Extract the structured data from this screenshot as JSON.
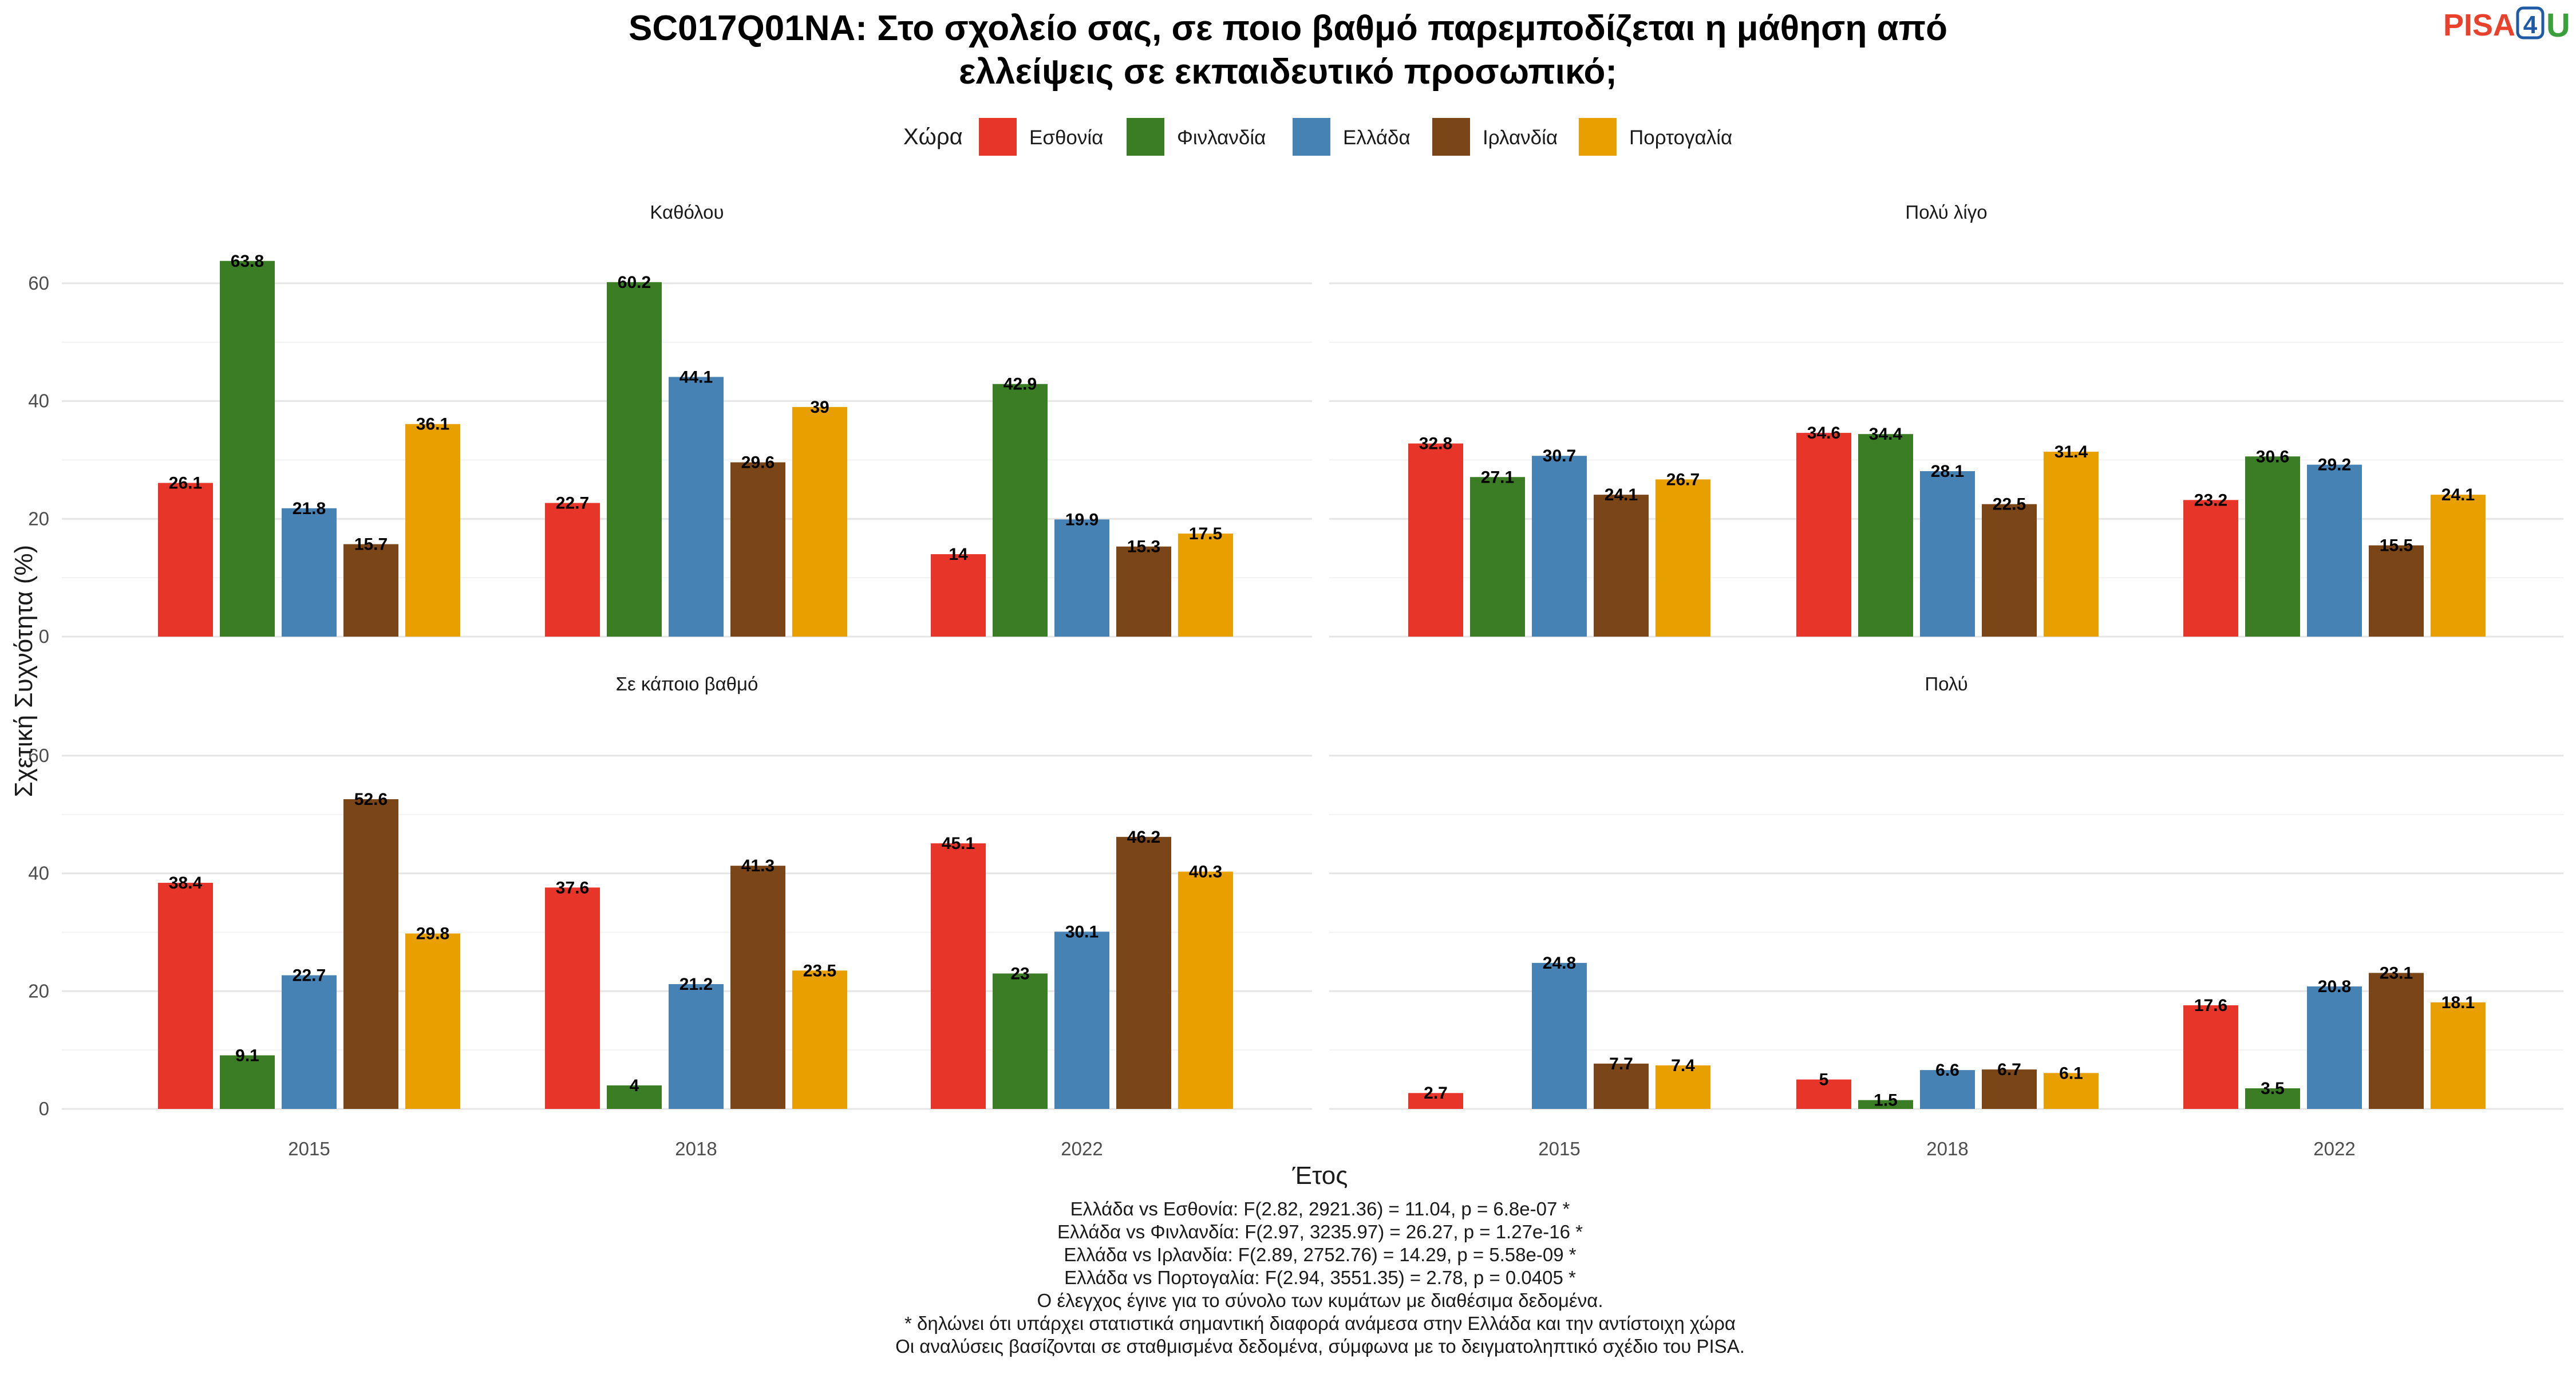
{
  "title_line1": "SC017Q01NA: Στο σχολείο σας, σε ποιο βαθμό παρεμποδίζεται η μάθηση από",
  "title_line2": "ελλείψεις σε εκπαιδευτικό προσωπικό;",
  "logo": {
    "text": "PISA4U",
    "pisa": "PISA",
    "four": "4",
    "u": "U"
  },
  "legend": {
    "title": "Χώρα",
    "placement": "top",
    "items": [
      {
        "label": "Εσθονία",
        "color": "#e8352a"
      },
      {
        "label": "Φινλανδία",
        "color": "#3a7d24"
      },
      {
        "label": "Ελλάδα",
        "color": "#4682b4"
      },
      {
        "label": "Ιρλανδία",
        "color": "#7a4517"
      },
      {
        "label": "Πορτογαλία",
        "color": "#e8a000"
      }
    ]
  },
  "axes": {
    "x_title": "Έτος",
    "y_title": "Σχετική Συχνότητα (%)",
    "y_ticks": [
      "0",
      "20",
      "40",
      "60"
    ],
    "ylim": [
      0,
      70
    ],
    "grid": true
  },
  "chart_data": {
    "type": "bar",
    "categories": [
      "2015",
      "2018",
      "2022"
    ],
    "series_names": [
      "Εσθονία",
      "Φινλανδία",
      "Ελλάδα",
      "Ιρλανδία",
      "Πορτογαλία"
    ],
    "colors": [
      "#e8352a",
      "#3a7d24",
      "#4682b4",
      "#7a4517",
      "#e8a000"
    ],
    "ylim": [
      0,
      70
    ],
    "panels": [
      {
        "title": "Καθόλου",
        "series": [
          {
            "name": "Εσθονία",
            "values": [
              26.1,
              22.7,
              14
            ]
          },
          {
            "name": "Φινλανδία",
            "values": [
              63.8,
              60.2,
              42.9
            ]
          },
          {
            "name": "Ελλάδα",
            "values": [
              21.8,
              44.1,
              19.9
            ]
          },
          {
            "name": "Ιρλανδία",
            "values": [
              15.7,
              29.6,
              15.3
            ]
          },
          {
            "name": "Πορτογαλία",
            "values": [
              36.1,
              39,
              17.5
            ]
          }
        ]
      },
      {
        "title": "Πολύ λίγο",
        "series": [
          {
            "name": "Εσθονία",
            "values": [
              32.8,
              34.6,
              23.2
            ]
          },
          {
            "name": "Φινλανδία",
            "values": [
              27.1,
              34.4,
              30.6
            ]
          },
          {
            "name": "Ελλάδα",
            "values": [
              30.7,
              28.1,
              29.2
            ]
          },
          {
            "name": "Ιρλανδία",
            "values": [
              24.1,
              22.5,
              15.5
            ]
          },
          {
            "name": "Πορτογαλία",
            "values": [
              26.7,
              31.4,
              24.1
            ]
          }
        ]
      },
      {
        "title": "Σε κάποιο βαθμό",
        "series": [
          {
            "name": "Εσθονία",
            "values": [
              38.4,
              37.6,
              45.1
            ]
          },
          {
            "name": "Φινλανδία",
            "values": [
              9.1,
              4,
              23
            ]
          },
          {
            "name": "Ελλάδα",
            "values": [
              22.7,
              21.2,
              30.1
            ]
          },
          {
            "name": "Ιρλανδία",
            "values": [
              52.6,
              41.3,
              46.2
            ]
          },
          {
            "name": "Πορτογαλία",
            "values": [
              29.8,
              23.5,
              40.3
            ]
          }
        ]
      },
      {
        "title": "Πολύ",
        "series": [
          {
            "name": "Εσθονία",
            "values": [
              2.7,
              5,
              17.6
            ]
          },
          {
            "name": "Φινλανδία",
            "values": [
              null,
              1.5,
              3.5
            ]
          },
          {
            "name": "Ελλάδα",
            "values": [
              24.8,
              6.6,
              20.8
            ]
          },
          {
            "name": "Ιρλανδία",
            "values": [
              7.7,
              6.7,
              23.1
            ]
          },
          {
            "name": "Πορτογαλία",
            "values": [
              7.4,
              6.1,
              18.1
            ]
          }
        ]
      }
    ]
  },
  "caption_lines": [
    "Ελλάδα vs Εσθονία: F(2.82, 2921.36) = 11.04, p = 6.8e-07 *",
    "Ελλάδα vs Φινλανδία: F(2.97, 3235.97) = 26.27, p = 1.27e-16 *",
    "Ελλάδα vs Ιρλανδία: F(2.89, 2752.76) = 14.29, p = 5.58e-09 *",
    "Ελλάδα vs Πορτογαλία: F(2.94, 3551.35) = 2.78, p = 0.0405 *",
    "Ο έλεγχος έγινε για το σύνολο των κυμάτων με διαθέσιμα δεδομένα.",
    "* δηλώνει ότι υπάρχει στατιστικά σημαντική διαφορά ανάμεσα στην Ελλάδα και την αντίστοιχη χώρα",
    "Οι αναλύσεις βασίζονται σε σταθμισμένα δεδομένα, σύμφωνα με το δειγματοληπτικό σχέδιο του PISA."
  ]
}
